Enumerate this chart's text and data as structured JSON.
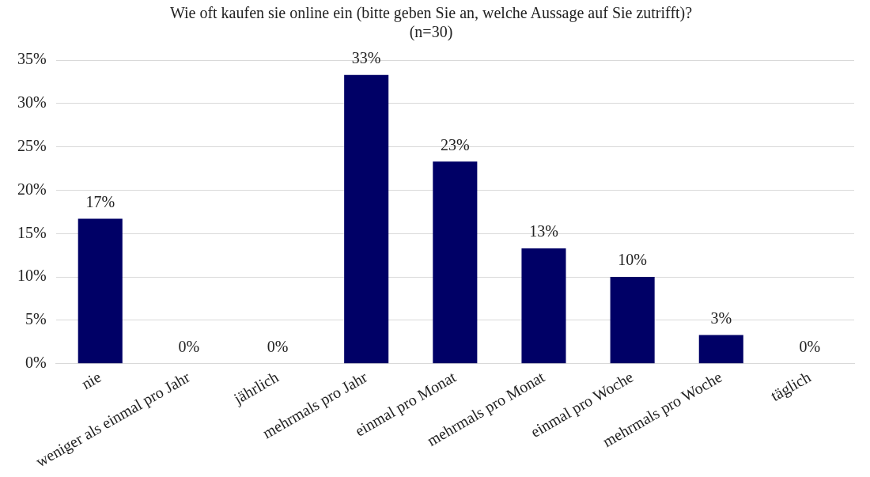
{
  "chart_data": {
    "type": "bar",
    "title": "Wie oft kaufen sie online ein (bitte geben Sie an, welche Aussage auf Sie zutrifft)?",
    "subtitle": "(n=30)",
    "categories": [
      "nie",
      "weniger als einmal pro Jahr",
      "jährlich",
      "mehrmals pro Jahr",
      "einmal pro Monat",
      "mehrmals pro Monat",
      "einmal pro Woche",
      "mehrmals pro Woche",
      "täglich"
    ],
    "values": [
      16.7,
      0,
      0,
      33.3,
      23.3,
      13.3,
      10,
      3.3,
      0
    ],
    "value_labels": [
      "17%",
      "0%",
      "0%",
      "33%",
      "23%",
      "13%",
      "10%",
      "3%",
      "0%"
    ],
    "color": "#000066",
    "ylim": [
      0,
      35
    ],
    "yticks": [
      {
        "value": 0,
        "label": "0%"
      },
      {
        "value": 5,
        "label": "5%"
      },
      {
        "value": 10,
        "label": "10%"
      },
      {
        "value": 15,
        "label": "15%"
      },
      {
        "value": 20,
        "label": "20%"
      },
      {
        "value": 25,
        "label": "25%"
      },
      {
        "value": 30,
        "label": "30%"
      },
      {
        "value": 35,
        "label": "35%"
      }
    ],
    "grid": "y",
    "legend": false
  }
}
